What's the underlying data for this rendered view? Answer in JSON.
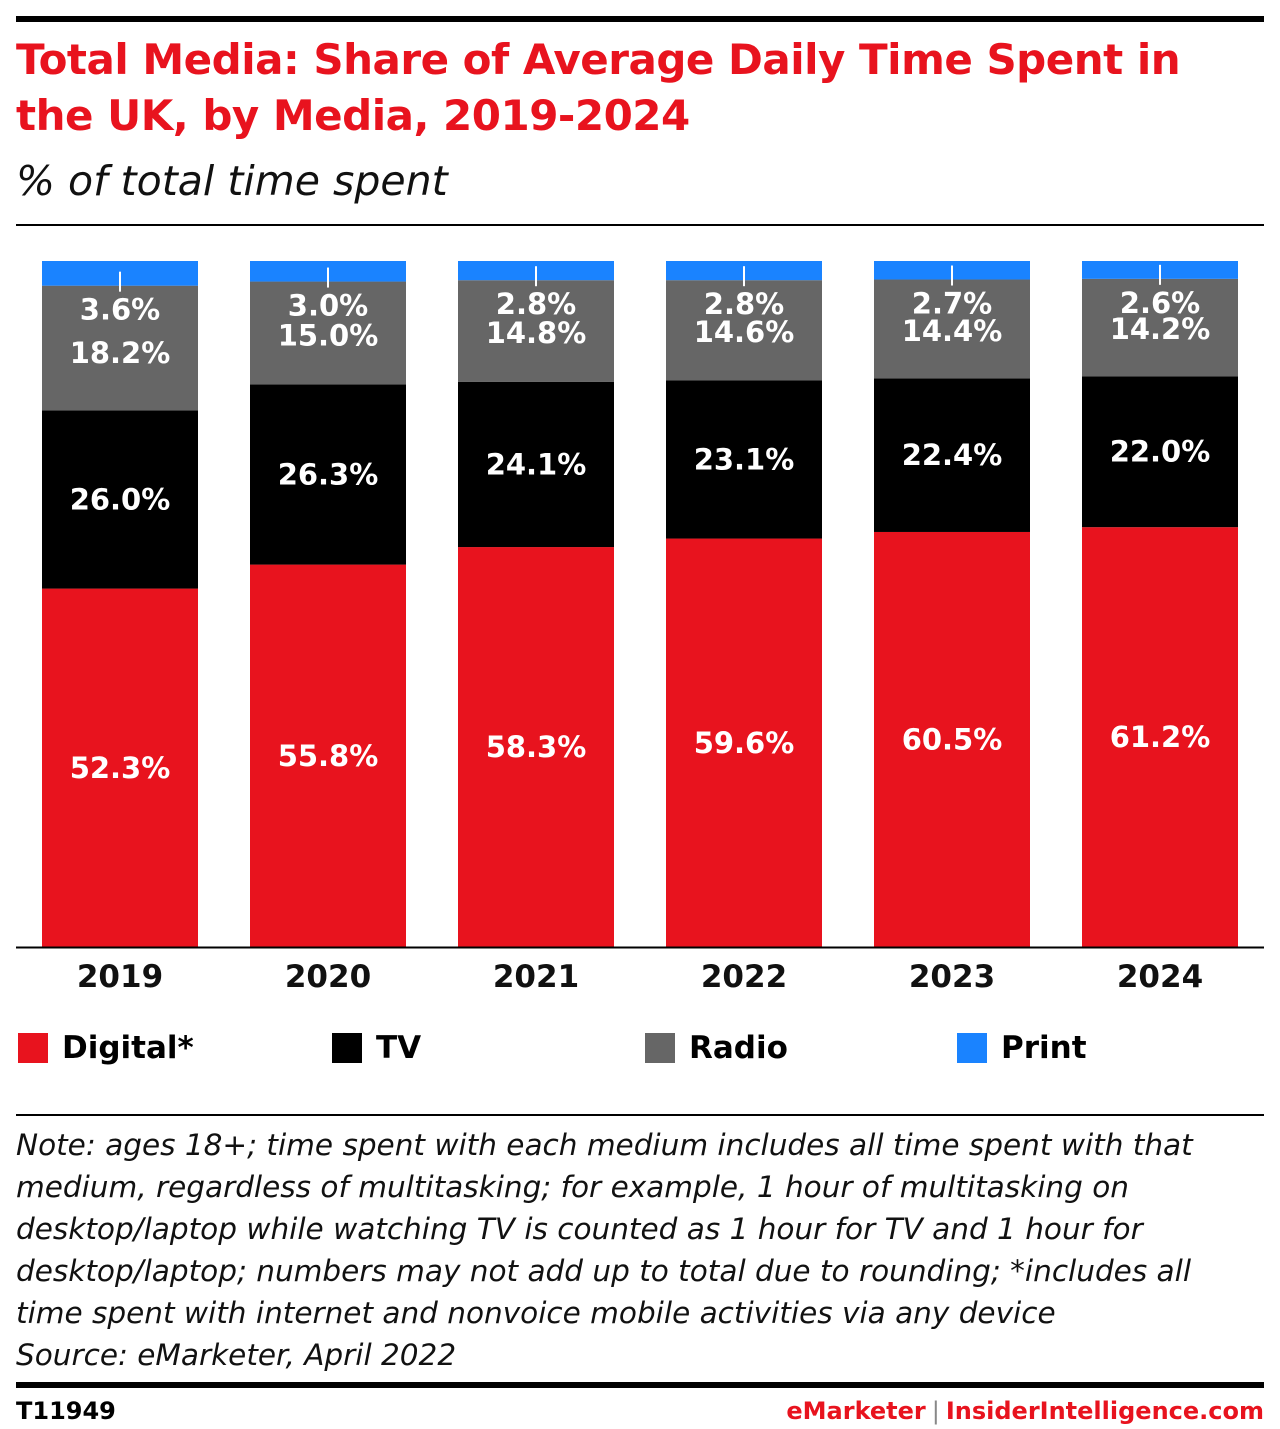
{
  "header": {
    "title": "Total Media: Share of Average Daily Time Spent in the UK, by Media, 2019-2024",
    "subtitle": "% of total time spent"
  },
  "colors": {
    "accent": "#e8131e",
    "digital": "#e8131e",
    "tv": "#000000",
    "radio": "#666666",
    "print": "#1a83ff"
  },
  "chart_data": {
    "type": "bar",
    "stacked": true,
    "title": "Total Media: Share of Average Daily Time Spent in the UK, by Media, 2019-2024",
    "subtitle": "% of total time spent",
    "xlabel": "",
    "ylabel": "",
    "ylim": [
      0,
      100
    ],
    "categories": [
      "2019",
      "2020",
      "2021",
      "2022",
      "2023",
      "2024"
    ],
    "series": [
      {
        "name": "Digital*",
        "values": [
          52.3,
          55.8,
          58.3,
          59.6,
          60.5,
          61.2
        ],
        "labels": [
          "52.3%",
          "55.8%",
          "58.3%",
          "59.6%",
          "60.5%",
          "61.2%"
        ],
        "color": "#e8131e",
        "label_color": "#ffffff"
      },
      {
        "name": "TV",
        "values": [
          26.0,
          26.3,
          24.1,
          23.1,
          22.4,
          22.0
        ],
        "labels": [
          "26.0%",
          "26.3%",
          "24.1%",
          "23.1%",
          "22.4%",
          "22.0%"
        ],
        "color": "#000000",
        "label_color": "#ffffff"
      },
      {
        "name": "Radio",
        "values": [
          18.2,
          15.0,
          14.8,
          14.6,
          14.4,
          14.2
        ],
        "labels": [
          "18.2%",
          "15.0%",
          "14.8%",
          "14.6%",
          "14.4%",
          "14.2%"
        ],
        "color": "#666666",
        "label_color": "#ffffff"
      },
      {
        "name": "Print",
        "values": [
          3.6,
          3.0,
          2.8,
          2.8,
          2.7,
          2.6
        ],
        "labels": [
          "3.6%",
          "3.0%",
          "2.8%",
          "2.8%",
          "2.7%",
          "2.6%"
        ],
        "color": "#1a83ff",
        "label_color": "#ffffff"
      }
    ],
    "legend": [
      "Digital*",
      "TV",
      "Radio",
      "Print"
    ],
    "legend_position": "bottom",
    "grid": false
  },
  "footer": {
    "note": "Note: ages 18+; time spent with each medium includes all time spent with that\nmedium, regardless of multitasking; for example, 1 hour of multitasking on\ndesktop/laptop while watching TV is counted as 1 hour for TV and 1 hour for\ndesktop/laptop; numbers may not add up to total due to rounding; *includes all\ntime spent with internet and nonvoice mobile activities via any device",
    "source": "Source: eMarketer, April 2022",
    "chart_id": "T11949",
    "brand_em": "eMarketer",
    "brand_sep": "|",
    "brand_ii": "InsiderIntelligence.com"
  }
}
